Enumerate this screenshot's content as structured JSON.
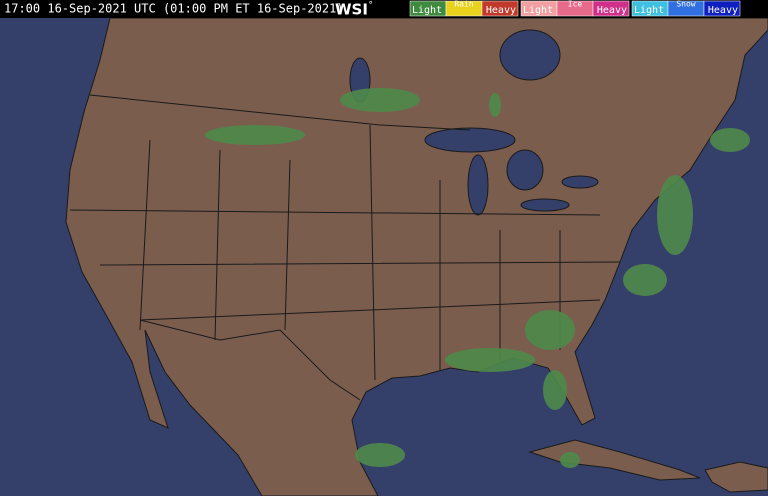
{
  "header": {
    "timestamp": "17:00 16-Sep-2021 UTC (01:00 PM ET 16-Sep-2021)",
    "logo": "WSI",
    "logo_mark": "°"
  },
  "legend": [
    {
      "type": "Rain",
      "light": "Light",
      "heavy": "Heavy"
    },
    {
      "type": "Ice",
      "light": "Light",
      "heavy": "Heavy"
    },
    {
      "type": "Snow",
      "light": "Light",
      "heavy": "Heavy"
    }
  ]
}
